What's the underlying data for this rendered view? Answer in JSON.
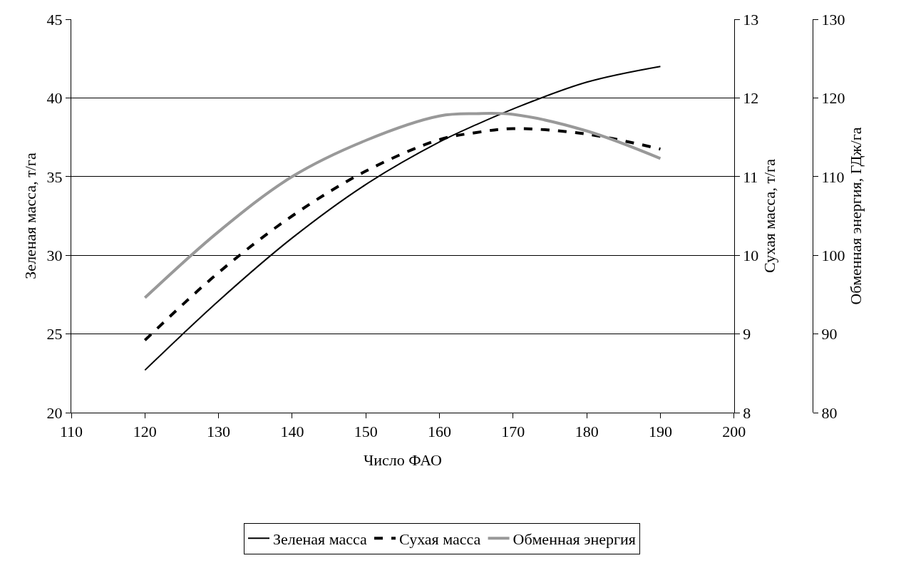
{
  "chart_data": {
    "type": "line",
    "xlabel": "Число ФАО",
    "ylabel": "Зеленая масса, т/га",
    "y2label": "Сухая масса, т/га",
    "y3label": "Обменная энергия, ГДж/га",
    "x": [
      120,
      130,
      140,
      150,
      160,
      165,
      170,
      180,
      190
    ],
    "series": [
      {
        "name": "Зеленая масса",
        "color": "#000000",
        "line_style": "solid",
        "values": [
          22.7,
          27.1,
          31.1,
          34.5,
          37.2,
          38.3,
          39.3,
          41.0,
          42.0
        ]
      },
      {
        "name": "Сухая масса",
        "color": "#000000",
        "line_style": "dashed",
        "axis": "y2",
        "values": [
          8.92,
          9.78,
          10.5,
          11.07,
          11.47,
          11.56,
          11.61,
          11.54,
          11.35
        ]
      },
      {
        "name": "Обменная энергия",
        "color": "#999999",
        "line_style": "solid",
        "axis": "y3",
        "values": [
          94.6,
          103.0,
          110.0,
          114.6,
          117.7,
          118.0,
          117.9,
          115.8,
          112.3
        ]
      }
    ],
    "xlim": [
      110,
      200
    ],
    "xticks": [
      110,
      120,
      130,
      140,
      150,
      160,
      170,
      180,
      190,
      200
    ],
    "ylim": [
      20,
      45
    ],
    "yticks": [
      20,
      25,
      30,
      35,
      40,
      45
    ],
    "y2lim": [
      8,
      13
    ],
    "y2ticks": [
      8,
      9,
      10,
      11,
      12,
      13
    ],
    "y3lim": [
      80,
      130
    ],
    "y3ticks": [
      80,
      90,
      100,
      110,
      120,
      130
    ],
    "grid": "y",
    "legend": "bottom",
    "marker": "none"
  }
}
